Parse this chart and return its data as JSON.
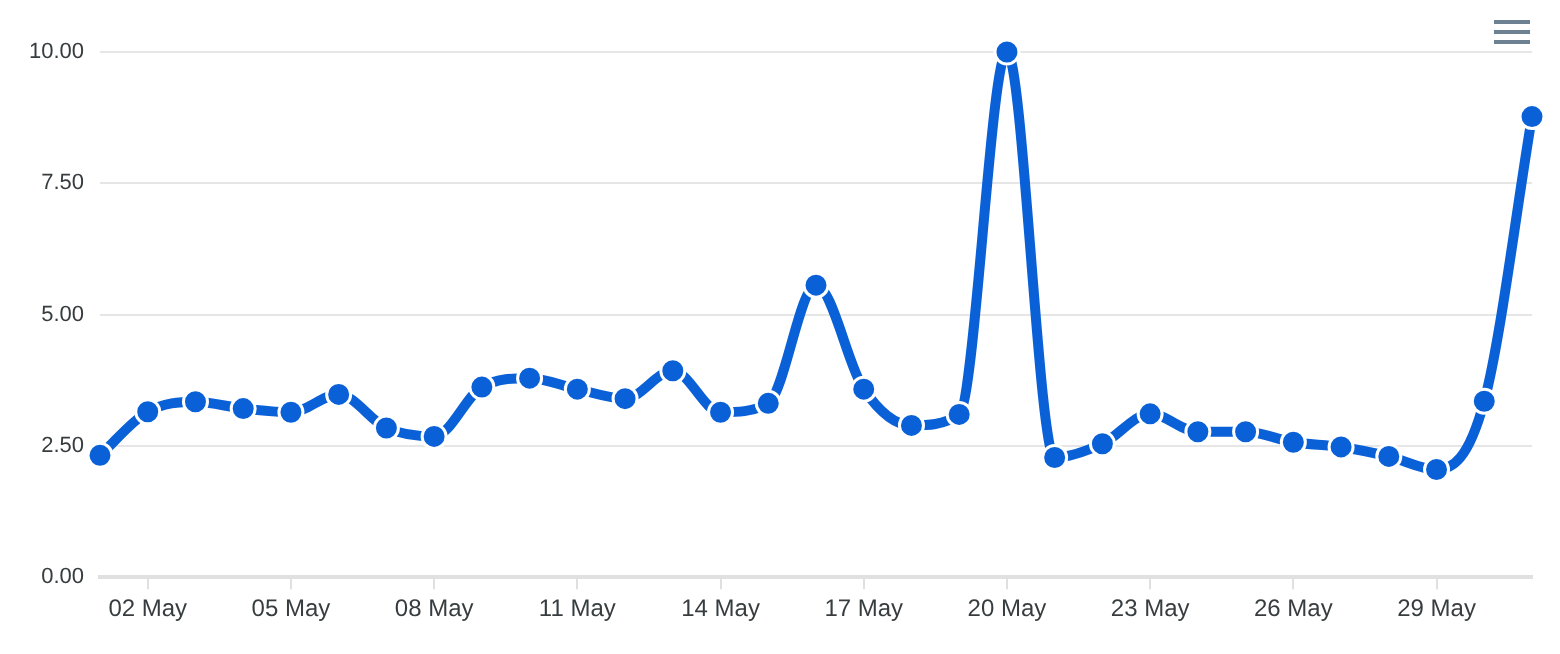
{
  "chart_data": {
    "type": "line",
    "x": [
      "--05-01",
      "--05-02",
      "--05-03",
      "--05-04",
      "--05-05",
      "--05-06",
      "--05-07",
      "--05-08",
      "--05-09",
      "--05-10",
      "--05-11",
      "--05-12",
      "--05-13",
      "--05-14",
      "--05-15",
      "--05-16",
      "--05-17",
      "--05-18",
      "--05-19",
      "--05-20",
      "--05-21",
      "--05-22",
      "--05-23",
      "--05-24",
      "--05-25",
      "--05-26",
      "--05-27",
      "--05-28",
      "--05-29",
      "--05-30",
      "--05-31"
    ],
    "series": [
      {
        "color": "#0a60d6",
        "values": [
          2.32,
          3.15,
          3.34,
          3.21,
          3.14,
          3.48,
          2.84,
          2.68,
          3.62,
          3.79,
          3.58,
          3.4,
          3.93,
          3.14,
          3.31,
          5.56,
          3.58,
          2.89,
          3.1,
          10.0,
          2.28,
          2.54,
          3.11,
          2.77,
          2.77,
          2.57,
          2.48,
          2.3,
          2.05,
          3.35,
          8.77
        ]
      }
    ],
    "xlim": [
      "--05-01",
      "--05-31"
    ],
    "xticks": [
      {
        "value": "--05-02",
        "label": "02 May"
      },
      {
        "value": "--05-05",
        "label": "05 May"
      },
      {
        "value": "--05-08",
        "label": "08 May"
      },
      {
        "value": "--05-11",
        "label": "11 May"
      },
      {
        "value": "--05-14",
        "label": "14 May"
      },
      {
        "value": "--05-17",
        "label": "17 May"
      },
      {
        "value": "--05-20",
        "label": "20 May"
      },
      {
        "value": "--05-23",
        "label": "23 May"
      },
      {
        "value": "--05-26",
        "label": "26 May"
      },
      {
        "value": "--05-29",
        "label": "29 May"
      }
    ],
    "ylim": [
      0,
      10
    ],
    "yticks": [
      {
        "value": 0,
        "label": "0.00"
      },
      {
        "value": 2.5,
        "label": "2.50"
      },
      {
        "value": 5,
        "label": "5.00"
      },
      {
        "value": 7.5,
        "label": "7.50"
      },
      {
        "value": 10,
        "label": "10.00"
      }
    ],
    "grid": "y",
    "marker": "circle",
    "line_style": "solid",
    "legend": false
  }
}
